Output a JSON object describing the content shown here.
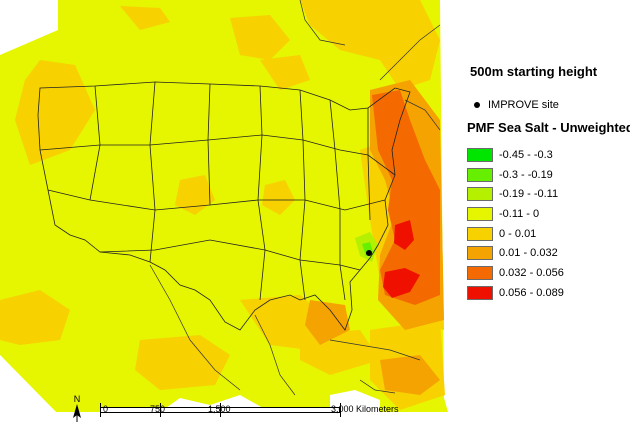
{
  "map": {
    "title": "500m starting height",
    "site_legend": "IMPROVE site",
    "legend_heading": "PMF Sea Salt - Unweighted",
    "classes": [
      {
        "label": "-0.45 - -0.3",
        "color": "#00e600"
      },
      {
        "label": "-0.3 - -0.19",
        "color": "#66f000"
      },
      {
        "label": "-0.19 - -0.11",
        "color": "#b4f000"
      },
      {
        "label": "-0.11 - 0",
        "color": "#e6f500"
      },
      {
        "label": "0 - 0.01",
        "color": "#f7d100"
      },
      {
        "label": "0.01 - 0.032",
        "color": "#f5a300"
      },
      {
        "label": "0.032 - 0.056",
        "color": "#f46a00"
      },
      {
        "label": "0.056 - 0.089",
        "color": "#f01000"
      }
    ],
    "scale": {
      "labels": [
        "0",
        "750",
        "1,500",
        "3,000 Kilometers"
      ]
    },
    "north_label": "N"
  }
}
